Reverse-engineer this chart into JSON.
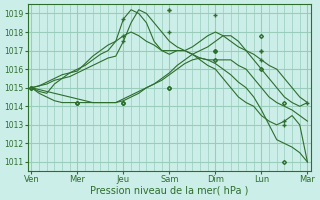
{
  "background_color": "#cceee8",
  "grid_color": "#99ccbb",
  "line_color": "#2d6e2d",
  "marker_color": "#2d6e2d",
  "xlabel": "Pression niveau de la mer( hPa )",
  "xlabel_fontsize": 7,
  "tick_labels": [
    "Ven",
    "Mer",
    "Jeu",
    "Sam",
    "Dim",
    "Lun",
    "Mar"
  ],
  "tick_positions": [
    0,
    6,
    12,
    18,
    24,
    30,
    36
  ],
  "minor_tick_interval": 1,
  "ylim": [
    1010.5,
    1019.5
  ],
  "yticks": [
    1011,
    1012,
    1013,
    1014,
    1015,
    1016,
    1017,
    1018,
    1019
  ],
  "series": [
    [
      1015.0,
      1014.8,
      1014.7,
      1015.2,
      1015.5,
      1015.8,
      1015.9,
      1016.3,
      1016.7,
      1017.0,
      1017.3,
      1017.5,
      1018.7,
      1019.2,
      1019.0,
      1018.5,
      1017.5,
      1017.0,
      1017.0,
      1017.0,
      1017.0,
      1016.8,
      1016.5,
      1016.2,
      1016.0,
      1015.5,
      1015.0,
      1014.5,
      1014.2,
      1014.0,
      1013.5,
      1013.2,
      1013.0,
      1013.2,
      1013.5,
      1013.0,
      1011.0
    ],
    [
      1015.0,
      1015.1,
      1015.2,
      1015.4,
      1015.5,
      1015.6,
      1015.8,
      1016.0,
      1016.2,
      1016.4,
      1016.6,
      1016.7,
      1017.5,
      1018.5,
      1019.2,
      1019.0,
      1018.5,
      1018.0,
      1017.5,
      1017.2,
      1017.0,
      1016.8,
      1016.6,
      1016.5,
      1016.5,
      1016.5,
      1016.5,
      1016.2,
      1016.0,
      1015.5,
      1015.0,
      1014.5,
      1014.2,
      1014.0,
      1013.8,
      1013.5,
      1013.2
    ],
    [
      1015.0,
      1015.1,
      1015.3,
      1015.5,
      1015.7,
      1015.8,
      1016.0,
      1016.2,
      1016.5,
      1016.8,
      1017.0,
      1017.5,
      1017.8,
      1018.0,
      1017.8,
      1017.5,
      1017.3,
      1017.0,
      1016.8,
      1017.0,
      1017.0,
      1017.2,
      1017.5,
      1017.8,
      1018.0,
      1017.8,
      1017.5,
      1017.2,
      1017.0,
      1016.8,
      1016.5,
      1016.2,
      1016.0,
      1015.5,
      1015.0,
      1014.5,
      1014.2
    ],
    [
      1015.0,
      1014.9,
      1014.8,
      1014.7,
      1014.6,
      1014.5,
      1014.4,
      1014.3,
      1014.2,
      1014.2,
      1014.2,
      1014.2,
      1014.4,
      1014.6,
      1014.8,
      1015.0,
      1015.2,
      1015.5,
      1015.8,
      1016.2,
      1016.5,
      1016.8,
      1017.0,
      1017.2,
      1017.5,
      1017.8,
      1017.8,
      1017.5,
      1017.0,
      1016.5,
      1016.0,
      1015.5,
      1015.0,
      1014.5,
      1014.2,
      1014.0,
      1014.2
    ],
    [
      1015.0,
      1014.7,
      1014.5,
      1014.3,
      1014.2,
      1014.2,
      1014.2,
      1014.2,
      1014.2,
      1014.2,
      1014.2,
      1014.2,
      1014.3,
      1014.5,
      1014.7,
      1015.0,
      1015.2,
      1015.4,
      1015.7,
      1016.0,
      1016.3,
      1016.5,
      1016.6,
      1016.5,
      1016.3,
      1016.0,
      1015.7,
      1015.3,
      1015.0,
      1014.5,
      1013.8,
      1013.0,
      1012.2,
      1012.0,
      1011.8,
      1011.5,
      1011.0
    ]
  ],
  "series_markers": [
    [
      [
        12,
        1018.7
      ],
      [
        18,
        1019.2
      ],
      [
        24,
        1017.0
      ],
      [
        30,
        1017.0
      ],
      [
        33,
        1013.0
      ]
    ],
    [
      [
        12,
        1017.5
      ],
      [
        18,
        1019.2
      ],
      [
        24,
        1018.9
      ],
      [
        30,
        1016.5
      ],
      [
        33,
        1013.2
      ]
    ],
    [
      [
        12,
        1017.8
      ],
      [
        18,
        1018.0
      ],
      [
        24,
        1017.0
      ],
      [
        30,
        1017.0
      ],
      [
        36,
        1014.2
      ]
    ],
    [
      [
        0,
        1015.0
      ],
      [
        6,
        1014.2
      ],
      [
        12,
        1014.2
      ],
      [
        18,
        1015.0
      ],
      [
        24,
        1017.0
      ],
      [
        30,
        1017.8
      ],
      [
        33,
        1014.2
      ]
    ],
    [
      [
        0,
        1015.0
      ],
      [
        6,
        1014.2
      ],
      [
        12,
        1014.2
      ],
      [
        18,
        1015.0
      ],
      [
        24,
        1016.5
      ],
      [
        30,
        1016.0
      ],
      [
        33,
        1011.0
      ]
    ]
  ]
}
